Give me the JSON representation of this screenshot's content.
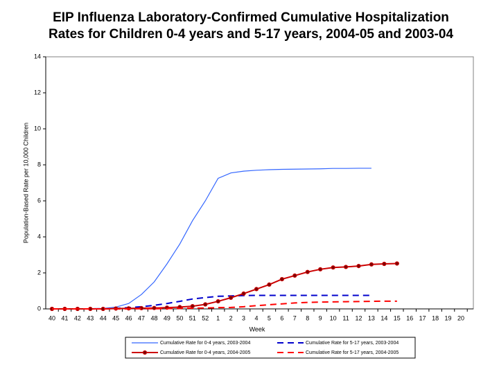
{
  "chart_data": {
    "type": "line",
    "title": [
      "EIP Influenza Laboratory-Confirmed Cumulative Hospitalization",
      "Rates for Children 0-4 years and 5-17 years, 2004-05 and 2003-04"
    ],
    "x_label": "Week",
    "y_label": "Population-Based Rate per 10,000 Children",
    "categories": [
      "40",
      "41",
      "42",
      "43",
      "44",
      "45",
      "46",
      "47",
      "48",
      "49",
      "50",
      "51",
      "52",
      "1",
      "2",
      "3",
      "4",
      "5",
      "6",
      "7",
      "8",
      "9",
      "10",
      "11",
      "12",
      "13",
      "14",
      "15",
      "16",
      "17",
      "18",
      "19",
      "20"
    ],
    "ylim": [
      0,
      14
    ],
    "yticks": [
      0,
      2,
      4,
      6,
      8,
      10,
      12,
      14
    ],
    "series": [
      {
        "name": "Cumulative Rate for 0-4 years, 2003-2004",
        "color": "#3366ff",
        "dash": false,
        "markers": false,
        "values": [
          0,
          0,
          0,
          0,
          0.02,
          0.1,
          0.3,
          0.8,
          1.5,
          2.5,
          3.6,
          4.9,
          6.0,
          7.25,
          7.55,
          7.65,
          7.7,
          7.73,
          7.75,
          7.76,
          7.77,
          7.78,
          7.8,
          7.8,
          7.81,
          7.81,
          null,
          null,
          null,
          null,
          null,
          null,
          null
        ]
      },
      {
        "name": "Cumulative Rate for 5-17 years, 2003-2004",
        "color": "#0000cc",
        "dash": true,
        "markers": false,
        "values": [
          0,
          0,
          0,
          0,
          0.01,
          0.03,
          0.07,
          0.12,
          0.2,
          0.3,
          0.42,
          0.55,
          0.63,
          0.7,
          0.72,
          0.74,
          0.75,
          0.75,
          0.75,
          0.75,
          0.75,
          0.75,
          0.75,
          0.75,
          0.75,
          0.75,
          null,
          null,
          null,
          null,
          null,
          null,
          null
        ]
      },
      {
        "name": "Cumulative Rate for 0-4 years, 2004-2005",
        "color": "#cc0000",
        "dash": false,
        "markers": true,
        "values": [
          0,
          0,
          0,
          0,
          0,
          0.02,
          0.03,
          0.04,
          0.05,
          0.07,
          0.1,
          0.15,
          0.25,
          0.42,
          0.62,
          0.85,
          1.1,
          1.35,
          1.65,
          1.85,
          2.05,
          2.2,
          2.3,
          2.33,
          2.38,
          2.47,
          2.5,
          2.52,
          null,
          null,
          null,
          null,
          null
        ]
      },
      {
        "name": "Cumulative Rate for 5-17 years, 2004-2005",
        "color": "#ff0000",
        "dash": true,
        "markers": false,
        "values": [
          0,
          0,
          0,
          0,
          0,
          0,
          0,
          0.01,
          0.01,
          0.02,
          0.03,
          0.04,
          0.05,
          0.07,
          0.08,
          0.12,
          0.18,
          0.23,
          0.28,
          0.33,
          0.36,
          0.38,
          0.39,
          0.4,
          0.41,
          0.42,
          0.43,
          0.43,
          null,
          null,
          null,
          null,
          null
        ]
      }
    ]
  }
}
